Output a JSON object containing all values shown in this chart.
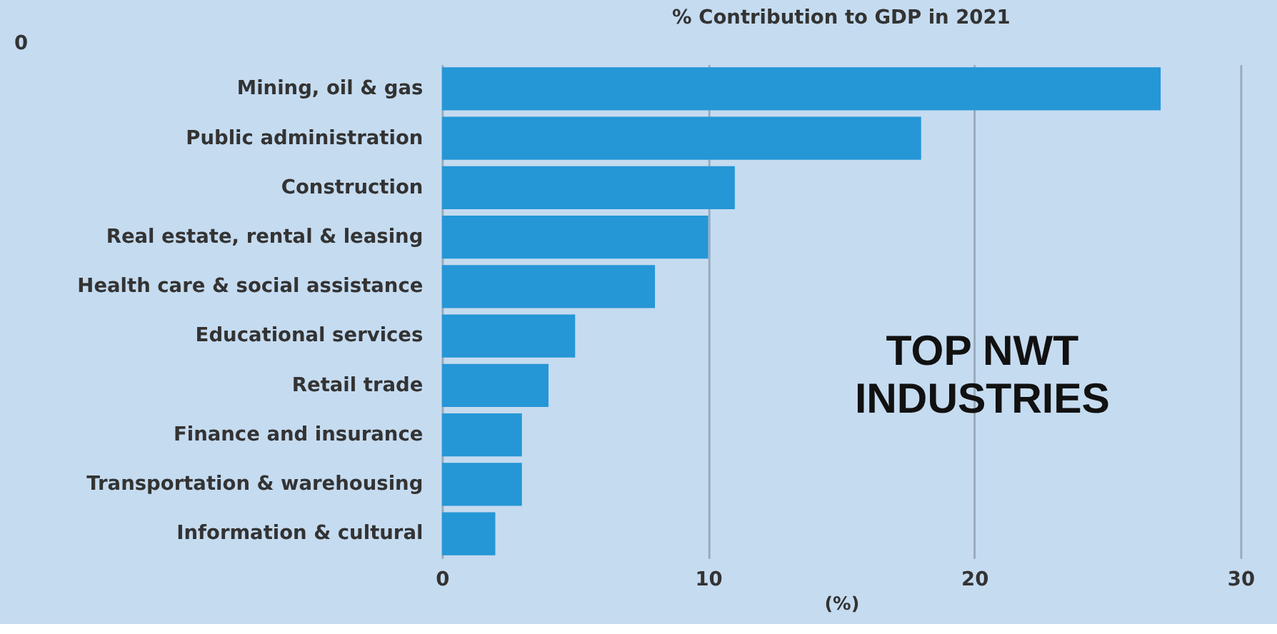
{
  "chart_data": {
    "type": "bar",
    "orientation": "horizontal",
    "title": "% Contribution to GDP in 2021",
    "xlabel": "(%)",
    "categories": [
      "Mining, oil & gas",
      "Public administration",
      "Construction",
      "Real estate, rental & leasing",
      "Health care & social assistance",
      "Educational services",
      "Retail trade",
      "Finance and insurance",
      "Transportation & warehousing",
      "Information & cultural"
    ],
    "values": [
      27,
      18,
      11,
      10,
      8,
      5,
      4,
      3,
      3,
      2
    ],
    "color": "#2596d6",
    "xlim": [
      0,
      30
    ],
    "xticks": [
      0,
      10,
      20,
      30
    ],
    "grid": "x",
    "annotations": [
      "TOP NWT INDUSTRIES",
      "0"
    ]
  }
}
